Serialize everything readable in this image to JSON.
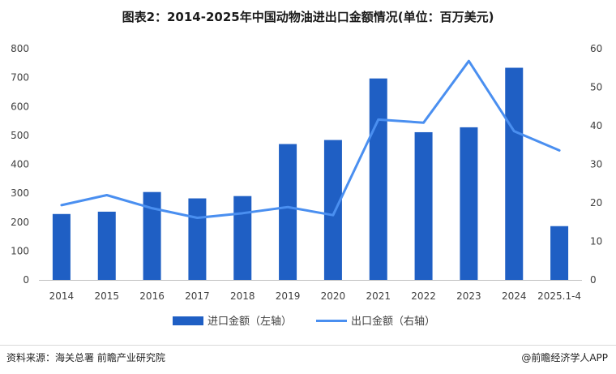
{
  "title": "图表2：2014-2025年中国动物油进出口金额情况(单位：百万美元)",
  "source": "资料来源：海关总署 前瞻产业研究院",
  "brand": "@前瞻经济学人APP",
  "colors": {
    "bar": "#1f5fc4",
    "line": "#4a8ff0"
  },
  "chart_data": {
    "type": "bar",
    "categories": [
      "2014",
      "2015",
      "2016",
      "2017",
      "2018",
      "2019",
      "2020",
      "2021",
      "2022",
      "2023",
      "2024",
      "2025.1-4"
    ],
    "series": [
      {
        "name": "进口金额（左轴）",
        "type": "bar",
        "axis": "left",
        "values": [
          228,
          236,
          304,
          282,
          290,
          470,
          484,
          697,
          511,
          528,
          734,
          186
        ]
      },
      {
        "name": "出口金额（右轴）",
        "type": "line",
        "axis": "right",
        "values": [
          19.4,
          22.0,
          18.6,
          16.1,
          17.3,
          18.9,
          16.8,
          41.6,
          40.8,
          56.8,
          38.6,
          33.6
        ]
      }
    ],
    "y_left": {
      "min": 0,
      "max": 800,
      "ticks": [
        0,
        100,
        200,
        300,
        400,
        500,
        600,
        700,
        800
      ]
    },
    "y_right": {
      "min": 0,
      "max": 60,
      "ticks": [
        0,
        10,
        20,
        30,
        40,
        50,
        60
      ]
    },
    "grid": false,
    "legend_position": "bottom"
  }
}
